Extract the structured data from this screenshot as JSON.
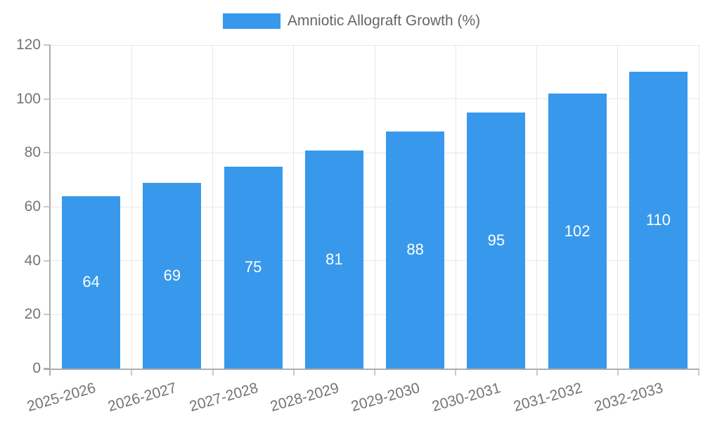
{
  "chart_data": {
    "type": "bar",
    "title": "",
    "legend_label": "Amniotic Allograft Growth (%)",
    "legend_position": "top",
    "categories": [
      "2025-2026",
      "2026-2027",
      "2027-2028",
      "2028-2029",
      "2029-2030",
      "2030-2031",
      "2031-2032",
      "2032-2033"
    ],
    "values": [
      64,
      69,
      75,
      81,
      88,
      95,
      102,
      110
    ],
    "value_labels": [
      "64",
      "69",
      "75",
      "81",
      "88",
      "95",
      "102",
      "110"
    ],
    "yticks": [
      0,
      20,
      40,
      60,
      80,
      100,
      120
    ],
    "ylim": [
      0,
      120
    ],
    "xlabel": "",
    "ylabel": "",
    "grid": true,
    "colors": {
      "bar": "#3899ec",
      "value_label": "#ffffff",
      "axis_text": "#757575",
      "legend_text": "#666666",
      "gridline": "#e7e7e7",
      "axis_line": "#adadad",
      "tick_mark": "#c9c9c9",
      "background": "#ffffff"
    }
  }
}
